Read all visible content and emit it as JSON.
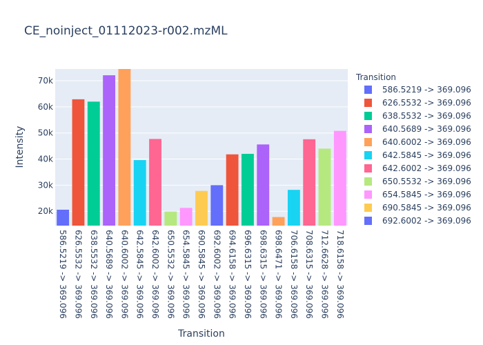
{
  "chart_data": {
    "type": "bar",
    "title": "CE_noinject_01112023-r002.mzML",
    "xlabel": "Transition",
    "ylabel": "Intensity",
    "legend_title": "Transition",
    "legend_position": "right",
    "grid": true,
    "ylim": [
      14500,
      74500
    ],
    "yticks": [
      20000,
      30000,
      40000,
      50000,
      60000,
      70000
    ],
    "ytick_labels": [
      "20k",
      "30k",
      "40k",
      "50k",
      "60k",
      "70k"
    ],
    "categories": [
      "586.5219 -> 369.096",
      "626.5532 -> 369.096",
      "638.5532 -> 369.096",
      "640.5689 -> 369.096",
      "640.6002 -> 369.096",
      "642.5845 -> 369.096",
      "642.6002 -> 369.096",
      "650.5532 -> 369.096",
      "654.5845 -> 369.096",
      "690.5845 -> 369.096",
      "692.6002 -> 369.096",
      "694.6158 -> 369.096",
      "696.6315 -> 369.096",
      "698.6315 -> 369.096",
      "698.6471 -> 369.096",
      "706.6158 -> 369.096",
      "708.6315 -> 369.096",
      "712.6628 -> 369.096",
      "718.6158 -> 369.096"
    ],
    "values": [
      20600,
      62900,
      62000,
      72100,
      74500,
      39600,
      47700,
      19900,
      21300,
      27800,
      30000,
      41800,
      42000,
      45600,
      17800,
      28200,
      47600,
      44000,
      50800
    ],
    "colors": [
      "#636efa",
      "#EF553B",
      "#00cc96",
      "#ab63fa",
      "#FFA15A",
      "#19d3f3",
      "#FF6692",
      "#B6E880",
      "#FF97FF",
      "#FECB52",
      "#636efa",
      "#EF553B",
      "#00cc96",
      "#ab63fa",
      "#FFA15A",
      "#19d3f3",
      "#FF6692",
      "#B6E880",
      "#FF97FF"
    ],
    "legend_entries": [
      "586.5219 -> 369.096",
      "626.5532 -> 369.096",
      "638.5532 -> 369.096",
      "640.5689 -> 369.096",
      "640.6002 -> 369.096",
      "642.5845 -> 369.096",
      "642.6002 -> 369.096",
      "650.5532 -> 369.096",
      "654.5845 -> 369.096",
      "690.5845 -> 369.096",
      "692.6002 -> 369.096"
    ]
  }
}
